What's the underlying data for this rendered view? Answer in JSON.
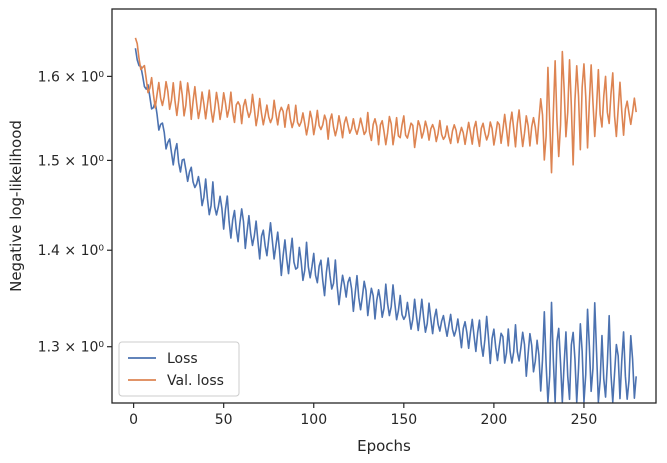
{
  "chart_data": {
    "type": "line",
    "xlabel": "Epochs",
    "ylabel": "Negative log-likelihood",
    "xlim": [
      -12,
      290
    ],
    "ylim": [
      1.245,
      1.685
    ],
    "y_scale": "log",
    "x_ticks": [
      0,
      50,
      100,
      150,
      200,
      250
    ],
    "x_tick_labels": [
      "0",
      "50",
      "100",
      "150",
      "200",
      "250"
    ],
    "y_ticks": [
      1.3,
      1.4,
      1.5,
      1.6
    ],
    "y_tick_labels": [
      "1.3",
      "1.4",
      "1.5",
      "1.6"
    ],
    "y_tick_label_suffix": " × 10⁰",
    "grid": false,
    "legend_position": "lower-left",
    "series": [
      {
        "name": "Loss",
        "color": "#4c72b0",
        "trend": [
          [
            0,
            1.645
          ],
          [
            3,
            1.615
          ],
          [
            8,
            1.58
          ],
          [
            20,
            1.515
          ],
          [
            40,
            1.46
          ],
          [
            60,
            1.425
          ],
          [
            80,
            1.4
          ],
          [
            100,
            1.38
          ],
          [
            120,
            1.36
          ],
          [
            140,
            1.345
          ],
          [
            160,
            1.33
          ],
          [
            180,
            1.315
          ],
          [
            200,
            1.305
          ],
          [
            220,
            1.295
          ],
          [
            228,
            1.29
          ],
          [
            250,
            1.285
          ],
          [
            265,
            1.28
          ],
          [
            279,
            1.275
          ]
        ],
        "amp": [
          [
            0,
            0.004
          ],
          [
            10,
            0.008
          ],
          [
            30,
            0.012
          ],
          [
            50,
            0.018
          ],
          [
            100,
            0.017
          ],
          [
            150,
            0.015
          ],
          [
            180,
            0.01
          ],
          [
            200,
            0.018
          ],
          [
            225,
            0.02
          ],
          [
            228,
            0.045
          ],
          [
            250,
            0.05
          ],
          [
            265,
            0.035
          ],
          [
            279,
            0.028
          ]
        ],
        "period": 4,
        "phase": 0,
        "start_x": 1,
        "end_x": 279
      },
      {
        "name": "Val. loss",
        "color": "#dd8452",
        "trend": [
          [
            0,
            1.66
          ],
          [
            3,
            1.62
          ],
          [
            10,
            1.58
          ],
          [
            20,
            1.575
          ],
          [
            40,
            1.565
          ],
          [
            60,
            1.56
          ],
          [
            80,
            1.555
          ],
          [
            100,
            1.545
          ],
          [
            120,
            1.54
          ],
          [
            150,
            1.535
          ],
          [
            180,
            1.532
          ],
          [
            200,
            1.535
          ],
          [
            225,
            1.54
          ],
          [
            235,
            1.56
          ],
          [
            250,
            1.575
          ],
          [
            265,
            1.565
          ],
          [
            279,
            1.55
          ]
        ],
        "amp": [
          [
            0,
            0.006
          ],
          [
            10,
            0.014
          ],
          [
            30,
            0.016
          ],
          [
            60,
            0.014
          ],
          [
            100,
            0.012
          ],
          [
            150,
            0.016
          ],
          [
            180,
            0.01
          ],
          [
            200,
            0.014
          ],
          [
            225,
            0.016
          ],
          [
            228,
            0.05
          ],
          [
            250,
            0.055
          ],
          [
            265,
            0.03
          ],
          [
            279,
            0.015
          ]
        ],
        "period": 4,
        "phase": 2,
        "start_x": 1,
        "end_x": 279
      }
    ]
  }
}
